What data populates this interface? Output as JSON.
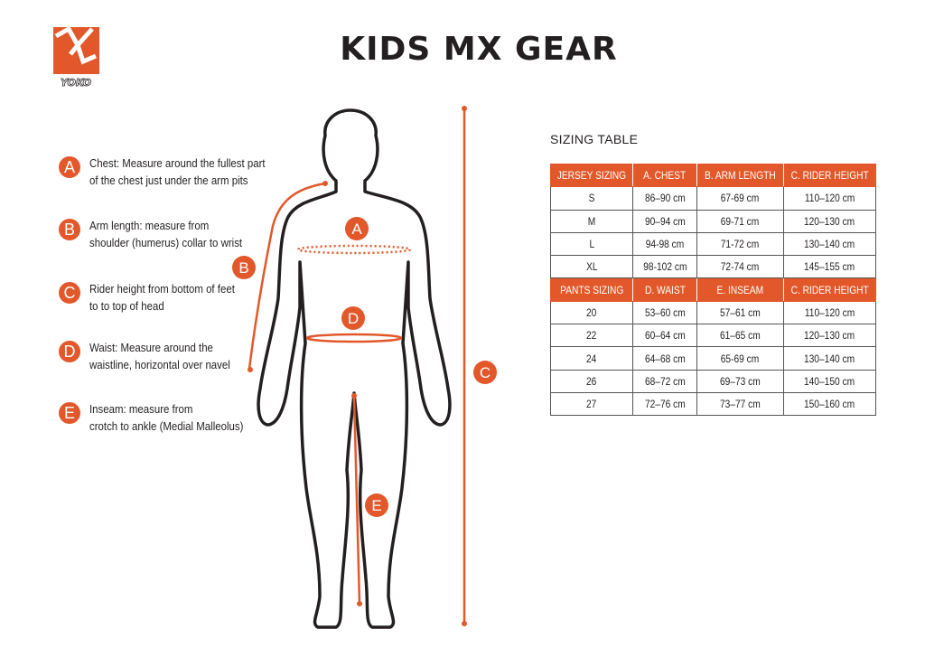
{
  "brand": {
    "logo_text": "YOKO",
    "accent_color": "#e2582a"
  },
  "title": "KIDS MX GEAR",
  "legend": [
    {
      "letter": "A",
      "line1": "Chest: Measure around  the fullest part",
      "line2": "of the chest just under the arm pits"
    },
    {
      "letter": "B",
      "line1": "Arm length: measure from",
      "line2": "shoulder (humerus) collar to wrist"
    },
    {
      "letter": "C",
      "line1": "Rider height from bottom of feet",
      "line2": "to to top of head"
    },
    {
      "letter": "D",
      "line1": "Waist: Measure around the",
      "line2": "waistline, horizontal over navel"
    },
    {
      "letter": "E",
      "line1": "Inseam: measure from",
      "line2": "crotch to ankle (Medial Malleolus)"
    }
  ],
  "figure_markers": {
    "a": "A",
    "b": "B",
    "c": "C",
    "d": "D",
    "e": "E"
  },
  "sizing_table": {
    "title": "SIZING TABLE",
    "jersey_header": [
      "JERSEY SIZING",
      "A. CHEST",
      "B. ARM LENGTH",
      "C. RIDER HEIGHT"
    ],
    "jersey_rows": [
      [
        "S",
        "86–90 cm",
        "67-69 cm",
        "110–120 cm"
      ],
      [
        "M",
        "90–94 cm",
        "69-71 cm",
        "120–130 cm"
      ],
      [
        "L",
        "94-98 cm",
        "71-72 cm",
        "130–140 cm"
      ],
      [
        "XL",
        "98-102 cm",
        "72-74 cm",
        "145–155 cm"
      ]
    ],
    "pants_header": [
      "PANTS SIZING",
      "D. WAIST",
      "E. INSEAM",
      "C. RIDER HEIGHT"
    ],
    "pants_rows": [
      [
        "20",
        "53–60 cm",
        "57–61 cm",
        "110–120 cm"
      ],
      [
        "22",
        "60–64 cm",
        "61–65 cm",
        "120–130 cm"
      ],
      [
        "24",
        "64–68 cm",
        "65-69 cm",
        "130–140 cm"
      ],
      [
        "26",
        "68–72 cm",
        "69–73 cm",
        "140–150 cm"
      ],
      [
        "27",
        "72–76 cm",
        "73–77 cm",
        "150–160 cm"
      ]
    ]
  }
}
